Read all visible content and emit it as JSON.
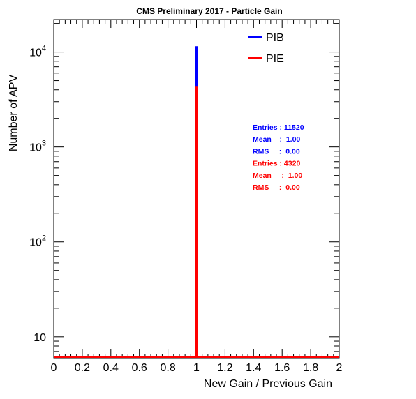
{
  "chart_data": {
    "type": "histogram",
    "title": "CMS Preliminary 2017  -  Particle Gain",
    "xlabel": "New Gain / Previous Gain",
    "ylabel": "Number of APV",
    "x_range": [
      0,
      2
    ],
    "y_range": [
      6,
      22000
    ],
    "y_scale": "log",
    "grid": false,
    "legend_position": "top-right",
    "x_ticks": [
      "0",
      "0.2",
      "0.4",
      "0.6",
      "0.8",
      "1",
      "1.2",
      "1.4",
      "1.6",
      "1.8",
      "2"
    ],
    "y_ticks": [
      {
        "value": 10,
        "base": "10",
        "exp": ""
      },
      {
        "value": 100,
        "base": "10",
        "exp": "2"
      },
      {
        "value": 1000,
        "base": "10",
        "exp": "3"
      },
      {
        "value": 10000,
        "base": "10",
        "exp": "4"
      }
    ],
    "series": [
      {
        "name": "PIB",
        "color": "#0000ff",
        "bin_center": 1.0,
        "count": 11520,
        "stats": [
          "Entries : 11520",
          "Mean    :  1.00",
          "RMS     :  0.00"
        ]
      },
      {
        "name": "PIE",
        "color": "#ff0000",
        "bin_center": 1.0,
        "count": 4320,
        "stats": [
          "Entries : 4320",
          "Mean     :  1.00",
          "RMS     :  0.00"
        ]
      }
    ]
  }
}
